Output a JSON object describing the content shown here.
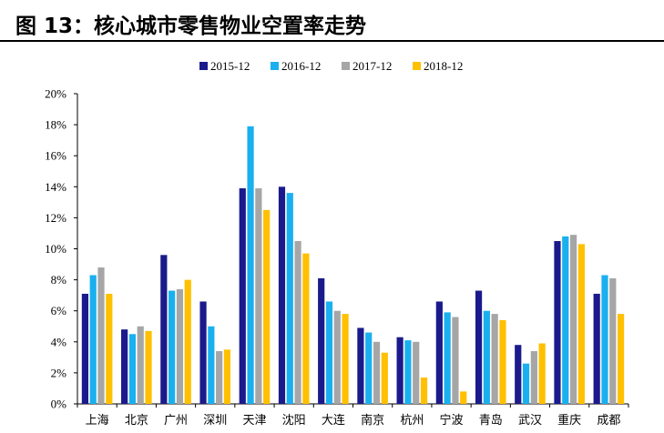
{
  "figure": {
    "title": "图 13：核心城市零售物业空置率走势"
  },
  "chart_data": {
    "type": "bar",
    "categories": [
      "上海",
      "北京",
      "广州",
      "深圳",
      "天津",
      "沈阳",
      "大连",
      "南京",
      "杭州",
      "宁波",
      "青岛",
      "武汉",
      "重庆",
      "成都"
    ],
    "series": [
      {
        "name": "2015-12",
        "color": "#1a1a8c",
        "values": [
          7.1,
          4.8,
          9.6,
          6.6,
          13.9,
          14.0,
          8.1,
          4.9,
          4.3,
          6.6,
          7.3,
          3.8,
          10.5,
          7.1
        ]
      },
      {
        "name": "2016-12",
        "color": "#1ab0f0",
        "values": [
          8.3,
          4.5,
          7.3,
          5.0,
          17.9,
          13.6,
          6.6,
          4.6,
          4.1,
          5.9,
          6.0,
          2.6,
          10.8,
          8.3
        ]
      },
      {
        "name": "2017-12",
        "color": "#a6a6a6",
        "values": [
          8.8,
          5.0,
          7.4,
          3.4,
          13.9,
          10.5,
          6.0,
          4.0,
          4.0,
          5.6,
          5.8,
          3.4,
          10.9,
          8.1
        ]
      },
      {
        "name": "2018-12",
        "color": "#ffc000",
        "values": [
          7.1,
          4.7,
          8.0,
          3.5,
          12.5,
          9.7,
          5.8,
          3.3,
          1.7,
          0.8,
          5.4,
          3.9,
          10.3,
          5.8
        ]
      }
    ],
    "ylim": [
      0,
      20
    ],
    "yticks": [
      "0%",
      "2%",
      "4%",
      "6%",
      "8%",
      "10%",
      "12%",
      "14%",
      "16%",
      "18%",
      "20%"
    ],
    "grid": false,
    "legend": "top-center",
    "xlabel": "",
    "ylabel": ""
  }
}
